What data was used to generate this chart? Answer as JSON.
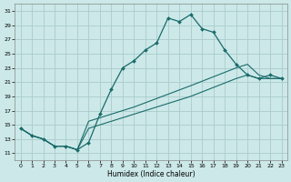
{
  "xlabel": "Humidex (Indice chaleur)",
  "bg_color": "#cce8e8",
  "grid_color": "#aacccc",
  "line_color": "#1a6b6b",
  "xlim": [
    -0.5,
    23.5
  ],
  "ylim": [
    10.0,
    32.0
  ],
  "yticks": [
    11,
    13,
    15,
    17,
    19,
    21,
    23,
    25,
    27,
    29,
    31
  ],
  "xticks": [
    0,
    1,
    2,
    3,
    4,
    5,
    6,
    7,
    8,
    9,
    10,
    11,
    12,
    13,
    14,
    15,
    16,
    17,
    18,
    19,
    20,
    21,
    22,
    23
  ],
  "curve1_x": [
    0,
    1,
    2,
    3,
    4,
    5,
    6,
    7,
    8,
    9,
    10,
    11,
    12,
    13,
    14,
    15,
    16,
    17,
    18,
    19,
    20,
    21,
    22,
    23
  ],
  "curve1_y": [
    14.5,
    13.5,
    13.0,
    12.0,
    12.0,
    11.5,
    12.5,
    16.5,
    20.0,
    23.0,
    24.0,
    25.5,
    26.5,
    30.0,
    29.5,
    30.5,
    28.5,
    28.0,
    25.5,
    23.5,
    22.0,
    21.5,
    22.0,
    21.5
  ],
  "curve2_x": [
    0,
    1,
    2,
    3,
    4,
    5,
    6,
    10,
    15,
    19,
    20,
    21,
    22,
    23
  ],
  "curve2_y": [
    14.5,
    13.5,
    13.0,
    12.0,
    12.0,
    11.5,
    15.5,
    17.5,
    20.5,
    23.0,
    23.5,
    22.0,
    21.5,
    21.5
  ],
  "curve3_x": [
    0,
    1,
    2,
    3,
    4,
    5,
    6,
    10,
    15,
    19,
    20,
    21,
    22,
    23
  ],
  "curve3_y": [
    14.5,
    13.5,
    13.0,
    12.0,
    12.0,
    11.5,
    14.5,
    16.5,
    19.0,
    21.5,
    22.0,
    21.5,
    21.5,
    21.5
  ]
}
